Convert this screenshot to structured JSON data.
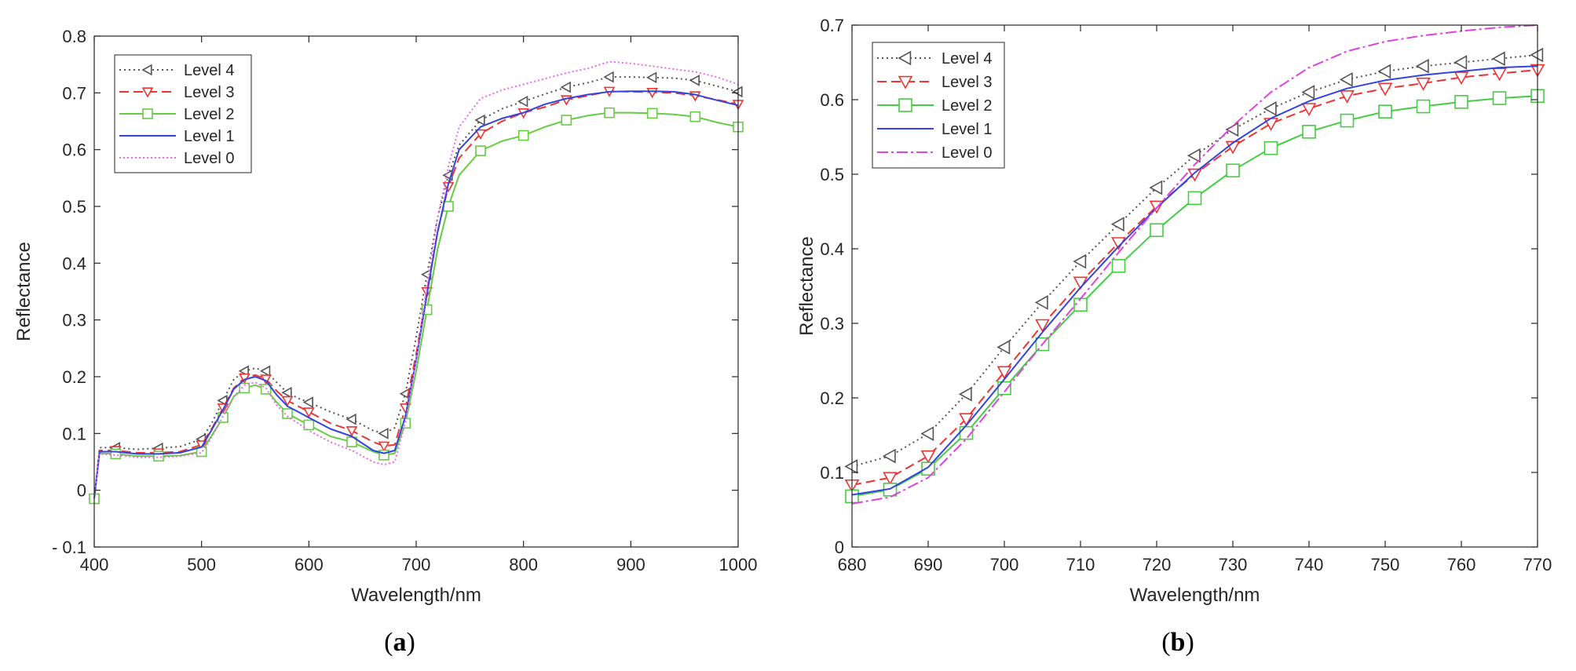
{
  "chart_data": [
    {
      "type": "line",
      "id": "a",
      "caption_open": "(",
      "caption_label": "a",
      "caption_close": ")",
      "xlabel": "Wavelength/nm",
      "ylabel": "Reflectance",
      "xlim": [
        400,
        1000
      ],
      "ylim": [
        -0.1,
        0.8
      ],
      "xticks": [
        400,
        500,
        600,
        700,
        800,
        900,
        1000
      ],
      "xtick_labels": [
        "400",
        "500",
        "600",
        "700",
        "800",
        "900",
        "1000"
      ],
      "yticks": [
        -0.1,
        0,
        0.1,
        0.2,
        0.3,
        0.4,
        0.5,
        0.6,
        0.7,
        0.8
      ],
      "ytick_labels": [
        "- 0.1",
        "0",
        "0.1",
        "0.2",
        "0.3",
        "0.4",
        "0.5",
        "0.6",
        "0.7",
        "0.8"
      ],
      "legend_position": "top-left",
      "x": [
        400,
        405,
        420,
        440,
        460,
        480,
        500,
        510,
        520,
        530,
        540,
        550,
        560,
        570,
        580,
        590,
        600,
        620,
        640,
        660,
        670,
        680,
        690,
        700,
        710,
        720,
        730,
        740,
        760,
        780,
        800,
        820,
        840,
        860,
        880,
        900,
        920,
        940,
        960,
        980,
        1000
      ],
      "series": [
        {
          "name": "Level 4",
          "color": "#555555",
          "dash": "2,4",
          "marker": "triangle-left",
          "marker_every": 2,
          "values": [
            -0.015,
            0.075,
            0.075,
            0.072,
            0.074,
            0.077,
            0.09,
            0.12,
            0.158,
            0.195,
            0.21,
            0.215,
            0.21,
            0.19,
            0.172,
            0.162,
            0.155,
            0.138,
            0.125,
            0.105,
            0.1,
            0.11,
            0.17,
            0.27,
            0.38,
            0.48,
            0.555,
            0.608,
            0.652,
            0.672,
            0.685,
            0.698,
            0.71,
            0.718,
            0.728,
            0.728,
            0.727,
            0.726,
            0.722,
            0.712,
            0.702
          ]
        },
        {
          "name": "Level 3",
          "color": "#ee3333",
          "dash": "12,6",
          "marker": "triangle-down",
          "marker_every": 2,
          "values": [
            -0.015,
            0.07,
            0.07,
            0.066,
            0.066,
            0.068,
            0.08,
            0.11,
            0.145,
            0.18,
            0.198,
            0.203,
            0.196,
            0.175,
            0.158,
            0.148,
            0.138,
            0.118,
            0.105,
            0.085,
            0.078,
            0.08,
            0.145,
            0.24,
            0.35,
            0.455,
            0.535,
            0.585,
            0.628,
            0.65,
            0.665,
            0.675,
            0.688,
            0.695,
            0.703,
            0.702,
            0.701,
            0.7,
            0.695,
            0.688,
            0.68
          ]
        },
        {
          "name": "Level 2",
          "color": "#66cc44",
          "dash": "",
          "marker": "square",
          "marker_every": 2,
          "values": [
            -0.015,
            0.065,
            0.064,
            0.06,
            0.06,
            0.061,
            0.068,
            0.098,
            0.128,
            0.165,
            0.18,
            0.185,
            0.178,
            0.155,
            0.135,
            0.125,
            0.115,
            0.095,
            0.085,
            0.068,
            0.062,
            0.065,
            0.118,
            0.21,
            0.318,
            0.425,
            0.5,
            0.555,
            0.598,
            0.615,
            0.625,
            0.64,
            0.652,
            0.66,
            0.665,
            0.665,
            0.664,
            0.662,
            0.658,
            0.648,
            0.64
          ]
        },
        {
          "name": "Level 1",
          "color": "#3344dd",
          "dash": "",
          "marker": "none",
          "marker_every": 0,
          "values": [
            -0.015,
            0.068,
            0.068,
            0.064,
            0.064,
            0.066,
            0.076,
            0.108,
            0.142,
            0.178,
            0.195,
            0.2,
            0.193,
            0.168,
            0.148,
            0.138,
            0.128,
            0.108,
            0.095,
            0.07,
            0.065,
            0.07,
            0.13,
            0.23,
            0.345,
            0.455,
            0.54,
            0.6,
            0.64,
            0.655,
            0.665,
            0.68,
            0.69,
            0.697,
            0.702,
            0.703,
            0.703,
            0.702,
            0.697,
            0.687,
            0.678
          ]
        },
        {
          "name": "Level 0",
          "color": "#ee66ee",
          "dash": "2,3",
          "marker": "none",
          "marker_every": 0,
          "values": [
            -0.015,
            0.064,
            0.062,
            0.058,
            0.058,
            0.06,
            0.066,
            0.095,
            0.13,
            0.165,
            0.185,
            0.19,
            0.18,
            0.15,
            0.13,
            0.118,
            0.105,
            0.085,
            0.07,
            0.05,
            0.045,
            0.05,
            0.12,
            0.23,
            0.36,
            0.48,
            0.57,
            0.64,
            0.69,
            0.705,
            0.715,
            0.725,
            0.735,
            0.743,
            0.755,
            0.752,
            0.747,
            0.742,
            0.737,
            0.728,
            0.715
          ]
        }
      ]
    },
    {
      "type": "line",
      "id": "b",
      "caption_open": "(",
      "caption_label": "b",
      "caption_close": ")",
      "xlabel": "Wavelength/nm",
      "ylabel": "Reflectance",
      "xlim": [
        680,
        770
      ],
      "ylim": [
        0,
        0.7
      ],
      "xticks": [
        680,
        690,
        700,
        710,
        720,
        730,
        740,
        750,
        760,
        770
      ],
      "xtick_labels": [
        "680",
        "690",
        "700",
        "710",
        "720",
        "730",
        "740",
        "750",
        "760",
        "770"
      ],
      "yticks": [
        0,
        0.1,
        0.2,
        0.3,
        0.4,
        0.5,
        0.6,
        0.7
      ],
      "ytick_labels": [
        "0",
        "0.1",
        "0.2",
        "0.3",
        "0.4",
        "0.5",
        "0.6",
        "0.7"
      ],
      "legend_position": "top-left",
      "x": [
        680,
        685,
        690,
        695,
        700,
        705,
        710,
        715,
        720,
        725,
        730,
        735,
        740,
        745,
        750,
        755,
        760,
        765,
        770
      ],
      "series": [
        {
          "name": "Level 4",
          "color": "#555555",
          "dash": "2,4",
          "marker": "triangle-left",
          "marker_every": 1,
          "values": [
            0.108,
            0.122,
            0.152,
            0.205,
            0.268,
            0.328,
            0.383,
            0.433,
            0.482,
            0.525,
            0.56,
            0.588,
            0.61,
            0.627,
            0.638,
            0.645,
            0.65,
            0.655,
            0.66
          ]
        },
        {
          "name": "Level 3",
          "color": "#ee3333",
          "dash": "12,6",
          "marker": "triangle-down",
          "marker_every": 1,
          "values": [
            0.083,
            0.093,
            0.122,
            0.172,
            0.235,
            0.298,
            0.355,
            0.408,
            0.457,
            0.5,
            0.537,
            0.568,
            0.588,
            0.605,
            0.615,
            0.622,
            0.63,
            0.635,
            0.64
          ]
        },
        {
          "name": "Level 2",
          "color": "#44cc44",
          "dash": "",
          "marker": "square",
          "marker_every": 1,
          "values": [
            0.068,
            0.077,
            0.105,
            0.153,
            0.213,
            0.272,
            0.325,
            0.377,
            0.425,
            0.468,
            0.505,
            0.535,
            0.557,
            0.572,
            0.584,
            0.591,
            0.597,
            0.602,
            0.605
          ]
        },
        {
          "name": "Level 1",
          "color": "#3344dd",
          "dash": "",
          "marker": "none",
          "marker_every": 0,
          "values": [
            0.07,
            0.078,
            0.107,
            0.163,
            0.225,
            0.288,
            0.348,
            0.403,
            0.455,
            0.502,
            0.542,
            0.575,
            0.598,
            0.615,
            0.626,
            0.633,
            0.638,
            0.643,
            0.645
          ]
        },
        {
          "name": "Level 0",
          "color": "#dd44dd",
          "dash": "14,4,3,4",
          "marker": "none",
          "marker_every": 0,
          "values": [
            0.058,
            0.067,
            0.093,
            0.145,
            0.208,
            0.272,
            0.333,
            0.395,
            0.455,
            0.513,
            0.565,
            0.61,
            0.643,
            0.665,
            0.678,
            0.686,
            0.692,
            0.697,
            0.7
          ]
        }
      ]
    }
  ]
}
